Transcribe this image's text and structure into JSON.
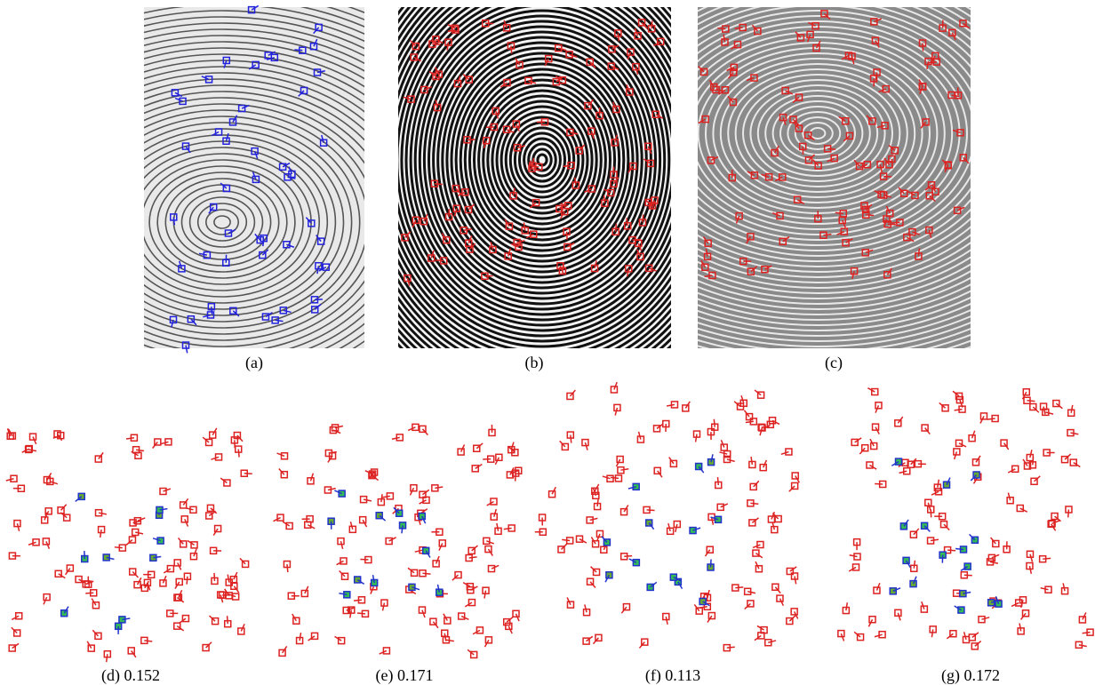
{
  "panels": [
    {
      "caption": "(a)"
    },
    {
      "caption": "(b)"
    },
    {
      "caption": "(c)"
    },
    {
      "caption": "(d) 0.152"
    },
    {
      "caption": "(e) 0.171"
    },
    {
      "caption": "(f) 0.113"
    },
    {
      "caption": "(g) 0.172"
    }
  ]
}
